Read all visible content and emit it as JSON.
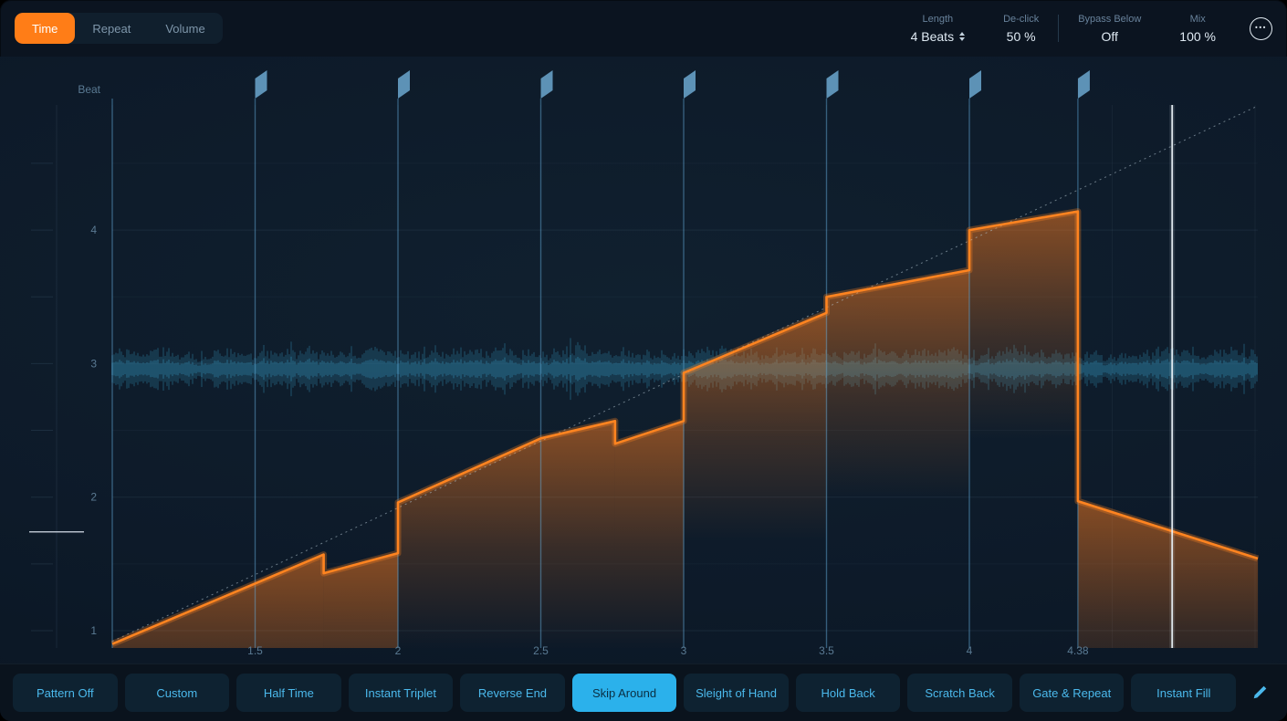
{
  "header": {
    "tabs": [
      {
        "label": "Time",
        "active": true
      },
      {
        "label": "Repeat",
        "active": false
      },
      {
        "label": "Volume",
        "active": false
      }
    ],
    "params": [
      {
        "label": "Length",
        "value": "4 Beats",
        "stepper": true,
        "divider_after": false
      },
      {
        "label": "De-click",
        "value": "50 %",
        "stepper": false,
        "divider_after": true
      },
      {
        "label": "Bypass Below",
        "value": "Off",
        "stepper": false,
        "divider_after": false
      },
      {
        "label": "Mix",
        "value": "100 %",
        "stepper": false,
        "divider_after": false
      }
    ],
    "more_glyph": "•••"
  },
  "pattern_bar": {
    "buttons": [
      {
        "label": "Pattern Off",
        "active": false
      },
      {
        "label": "Custom",
        "active": false
      },
      {
        "label": "Half Time",
        "active": false
      },
      {
        "label": "Instant Triplet",
        "active": false
      },
      {
        "label": "Reverse End",
        "active": false
      },
      {
        "label": "Skip Around",
        "active": true
      },
      {
        "label": "Sleight of Hand",
        "active": false
      },
      {
        "label": "Hold Back",
        "active": false
      },
      {
        "label": "Scratch Back",
        "active": false
      },
      {
        "label": "Gate & Repeat",
        "active": false
      },
      {
        "label": "Instant Fill",
        "active": false
      }
    ]
  },
  "chart_data": {
    "type": "line",
    "axis_label": "Beat",
    "x_ticks": [
      "1.5",
      "2",
      "2.5",
      "3",
      "3.5",
      "4",
      "4.38"
    ],
    "x_tick_beats": [
      1.5,
      2,
      2.5,
      3,
      3.5,
      4,
      4.38
    ],
    "y_ticks": [
      "4",
      "3",
      "2",
      "1"
    ],
    "y_tick_values": [
      4,
      3,
      2,
      1
    ],
    "x_range": [
      1,
      5.01
    ],
    "y_range": [
      0.87,
      4.94
    ],
    "slice_boundaries": [
      1.5,
      2,
      2.5,
      3,
      3.5,
      4,
      4.38
    ],
    "playhead_beat": 4.71,
    "left_marker_value": 1.74,
    "identity_line": [
      [
        1,
        0.92
      ],
      [
        5.01,
        4.93
      ]
    ],
    "curve_segments": [
      [
        [
          1.0,
          0.9
        ],
        [
          1.74,
          1.57
        ]
      ],
      [
        [
          1.74,
          1.43
        ],
        [
          2.0,
          1.58
        ]
      ],
      [
        [
          2.0,
          1.96
        ],
        [
          2.5,
          2.44
        ],
        [
          2.76,
          2.57
        ]
      ],
      [
        [
          2.76,
          2.4
        ],
        [
          3.0,
          2.57
        ]
      ],
      [
        [
          3.0,
          2.93
        ],
        [
          3.5,
          3.38
        ]
      ],
      [
        [
          3.5,
          3.5
        ],
        [
          4.0,
          3.7
        ]
      ],
      [
        [
          4.0,
          4.0
        ],
        [
          4.38,
          4.14
        ]
      ],
      [
        [
          4.38,
          1.97
        ],
        [
          5.01,
          1.54
        ]
      ]
    ],
    "waveform": {
      "center_value": 2.96,
      "color": "#2a7292"
    },
    "colors": {
      "curve": "#ff8420",
      "fill": "#ff7d1e",
      "grid": "#7ba0bf",
      "slice_line": "#5fa8d8",
      "flag": "#5d92b6",
      "playhead": "#e9f1f7",
      "identity": "#b7c8d4",
      "tick_text": "#5a7a93"
    }
  }
}
